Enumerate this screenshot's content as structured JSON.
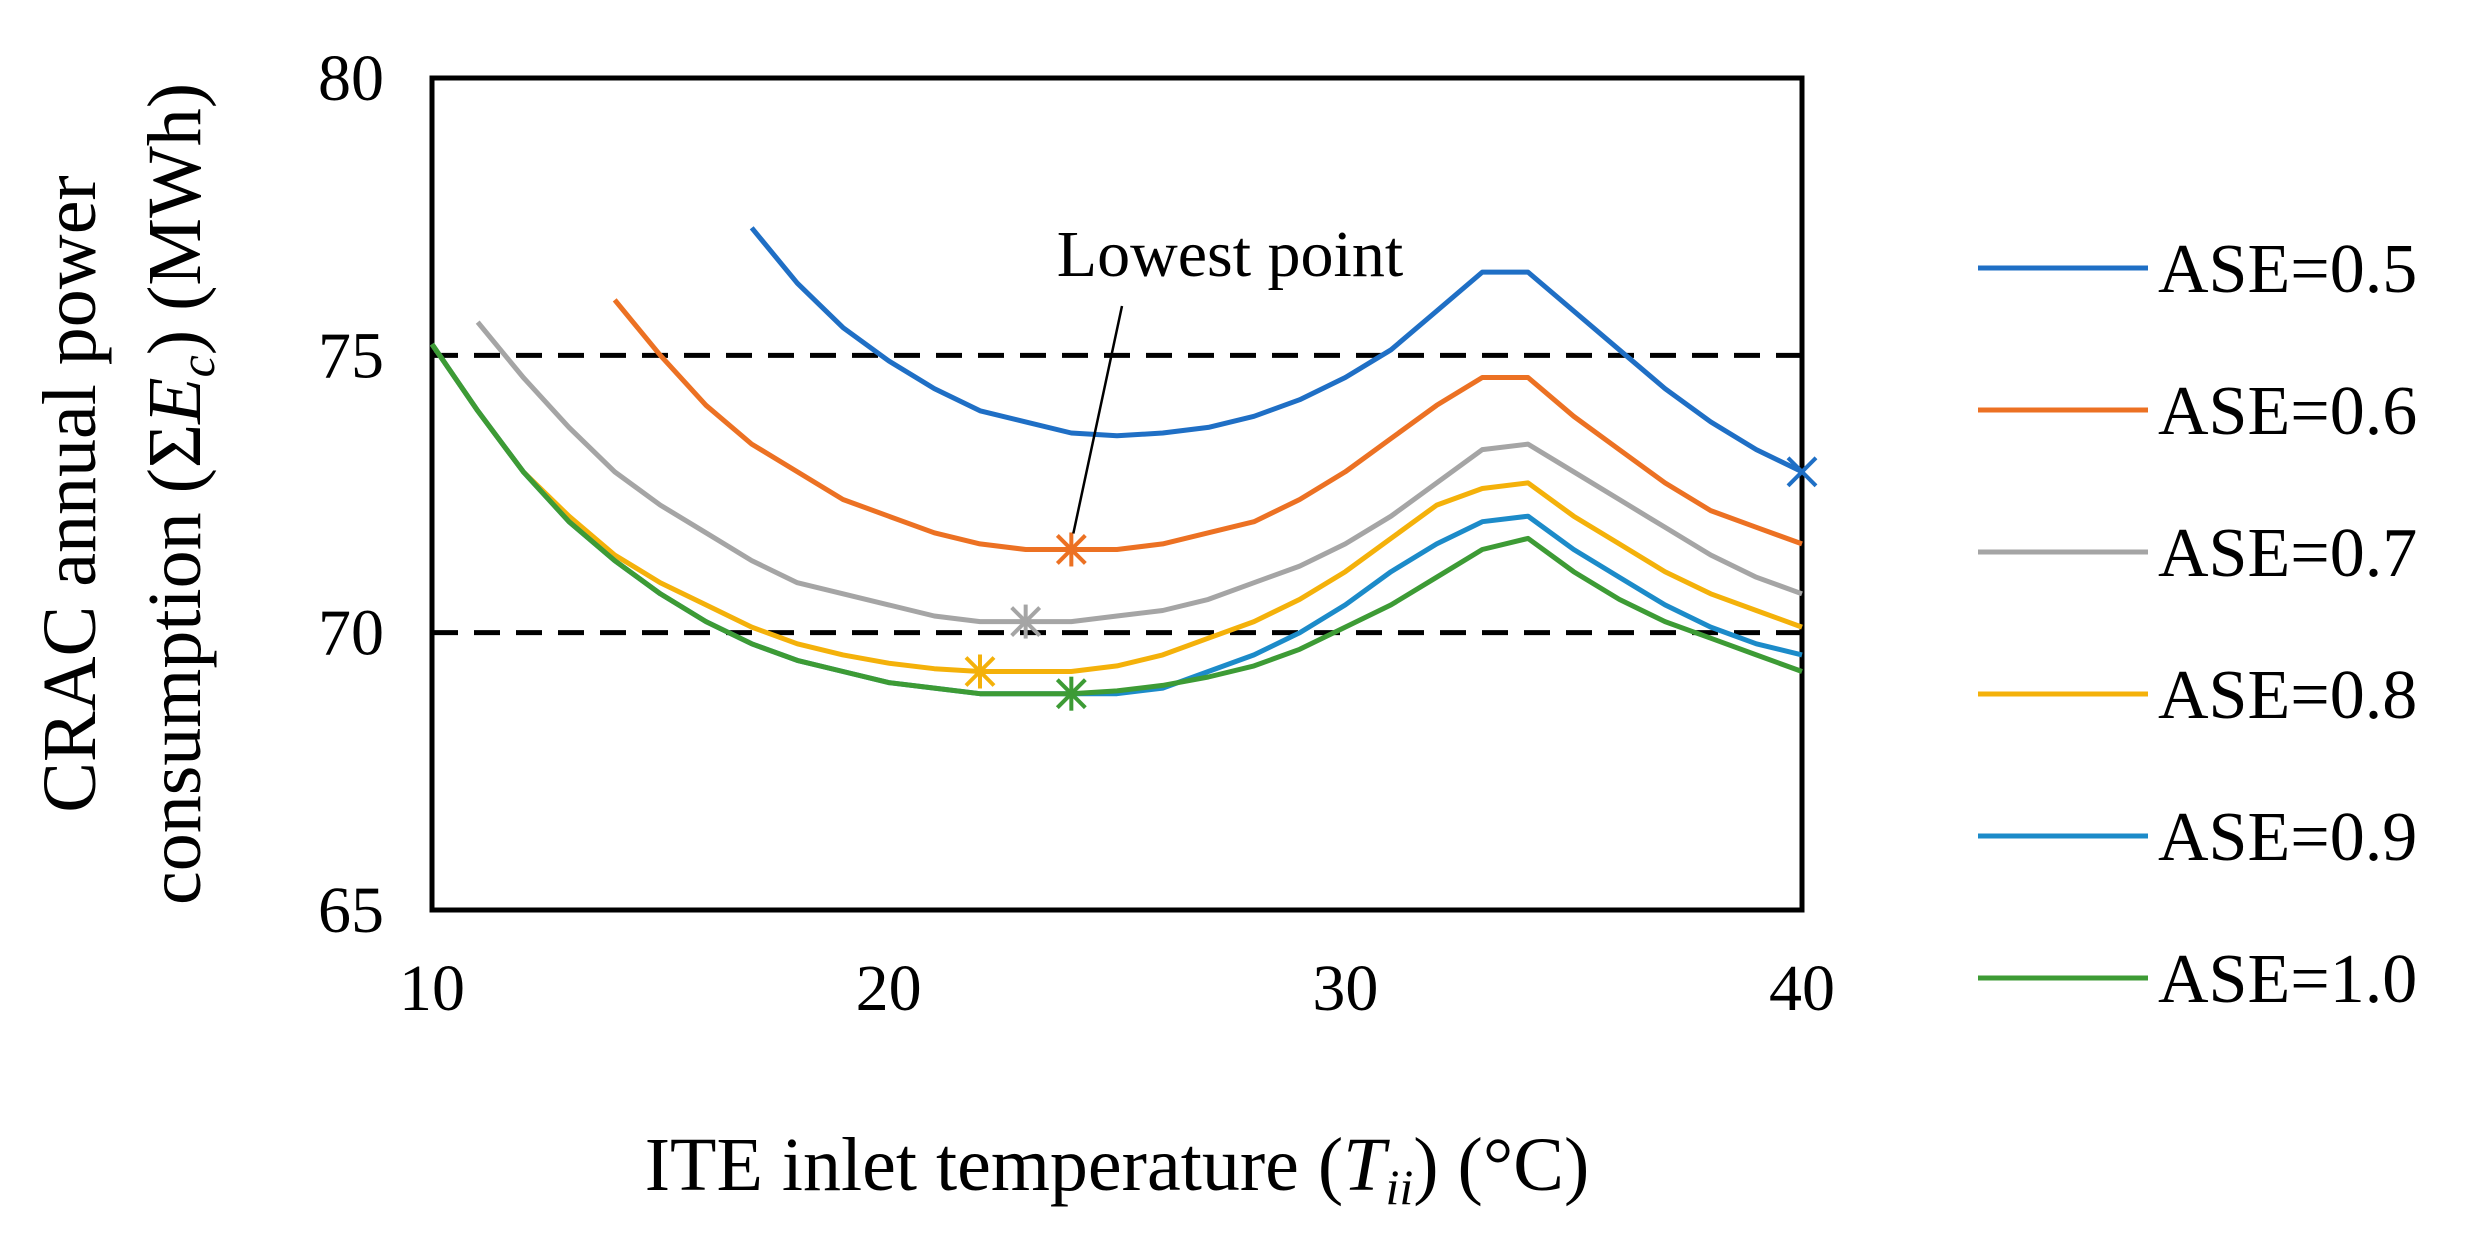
{
  "chart_data": {
    "type": "line",
    "xlabel": {
      "prefix": "ITE inlet temperature (",
      "var": "T",
      "sub": "ii",
      "suffix": ") (°C)"
    },
    "ylabel": {
      "line1": "CRAC annual power",
      "line2": {
        "prefix": "consumption (Σ",
        "var": "E",
        "sub": "c",
        "suffix": ") (MWh)"
      }
    },
    "xlim": [
      10,
      40
    ],
    "ylim": [
      65,
      80
    ],
    "xticks": [
      "10",
      "20",
      "30",
      "40"
    ],
    "yticks": [
      "65",
      "70",
      "75",
      "80"
    ],
    "reference_lines": [
      75,
      70
    ],
    "annotation": {
      "text": "Lowest point",
      "target": [
        24,
        71.5
      ]
    },
    "legend_position": "right",
    "series": [
      {
        "name": "ASE=0.5",
        "color": "#1f6fc5",
        "x": [
          17,
          18,
          19,
          20,
          21,
          22,
          23,
          24,
          25,
          26,
          27,
          28,
          29,
          30,
          31,
          32,
          33,
          34,
          35,
          36,
          37,
          38,
          39,
          40
        ],
        "y": [
          77.3,
          76.3,
          75.5,
          74.9,
          74.4,
          74.0,
          73.8,
          73.6,
          73.55,
          73.6,
          73.7,
          73.9,
          74.2,
          74.6,
          75.1,
          75.8,
          76.5,
          76.5,
          75.8,
          75.1,
          74.4,
          73.8,
          73.3,
          72.9
        ],
        "marker": {
          "x": 40,
          "y": 72.9,
          "symbol": "x"
        }
      },
      {
        "name": "ASE=0.6",
        "color": "#ec7123",
        "x": [
          14,
          15,
          16,
          17,
          18,
          19,
          20,
          21,
          22,
          23,
          24,
          25,
          26,
          27,
          28,
          29,
          30,
          31,
          32,
          33,
          34,
          35,
          36,
          37,
          38,
          39,
          40
        ],
        "y": [
          76.0,
          75.0,
          74.1,
          73.4,
          72.9,
          72.4,
          72.1,
          71.8,
          71.6,
          71.5,
          71.5,
          71.5,
          71.6,
          71.8,
          72.0,
          72.4,
          72.9,
          73.5,
          74.1,
          74.6,
          74.6,
          73.9,
          73.3,
          72.7,
          72.2,
          71.9,
          71.6
        ],
        "marker": {
          "x": 24,
          "y": 71.5,
          "symbol": "asterisk"
        }
      },
      {
        "name": "ASE=0.7",
        "color": "#a5a5a5",
        "x": [
          11,
          12,
          13,
          14,
          15,
          16,
          17,
          18,
          19,
          20,
          21,
          22,
          23,
          24,
          25,
          26,
          27,
          28,
          29,
          30,
          31,
          32,
          33,
          34,
          35,
          36,
          37,
          38,
          39,
          40
        ],
        "y": [
          75.6,
          74.6,
          73.7,
          72.9,
          72.3,
          71.8,
          71.3,
          70.9,
          70.7,
          70.5,
          70.3,
          70.2,
          70.2,
          70.2,
          70.3,
          70.4,
          70.6,
          70.9,
          71.2,
          71.6,
          72.1,
          72.7,
          73.3,
          73.4,
          72.9,
          72.4,
          71.9,
          71.4,
          71.0,
          70.7
        ],
        "marker": {
          "x": 23,
          "y": 70.2,
          "symbol": "asterisk"
        }
      },
      {
        "name": "ASE=0.8",
        "color": "#f4b10a",
        "x": [
          10,
          11,
          12,
          13,
          14,
          15,
          16,
          17,
          18,
          19,
          20,
          21,
          22,
          23,
          24,
          25,
          26,
          27,
          28,
          29,
          30,
          31,
          32,
          33,
          34,
          35,
          36,
          37,
          38,
          39,
          40
        ],
        "y": [
          75.2,
          74.0,
          72.9,
          72.1,
          71.4,
          70.9,
          70.5,
          70.1,
          69.8,
          69.6,
          69.45,
          69.35,
          69.3,
          69.3,
          69.3,
          69.4,
          69.6,
          69.9,
          70.2,
          70.6,
          71.1,
          71.7,
          72.3,
          72.6,
          72.7,
          72.1,
          71.6,
          71.1,
          70.7,
          70.4,
          70.1
        ],
        "marker": {
          "x": 22,
          "y": 69.3,
          "symbol": "asterisk"
        }
      },
      {
        "name": "ASE=0.9",
        "color": "#1c8bc9",
        "x": [
          10,
          11,
          12,
          13,
          14,
          15,
          16,
          17,
          18,
          19,
          20,
          21,
          22,
          23,
          24,
          25,
          26,
          27,
          28,
          29,
          30,
          31,
          32,
          33,
          34,
          35,
          36,
          37,
          38,
          39,
          40
        ],
        "y": [
          75.2,
          74.0,
          72.9,
          72.0,
          71.3,
          70.7,
          70.2,
          69.8,
          69.5,
          69.3,
          69.1,
          69.0,
          68.9,
          68.9,
          68.9,
          68.9,
          69.0,
          69.3,
          69.6,
          70.0,
          70.5,
          71.1,
          71.6,
          72.0,
          72.1,
          71.5,
          71.0,
          70.5,
          70.1,
          69.8,
          69.6
        ],
        "marker": null
      },
      {
        "name": "ASE=1.0",
        "color": "#3d9b35",
        "x": [
          10,
          11,
          12,
          13,
          14,
          15,
          16,
          17,
          18,
          19,
          20,
          21,
          22,
          23,
          24,
          25,
          26,
          27,
          28,
          29,
          30,
          31,
          32,
          33,
          34,
          35,
          36,
          37,
          38,
          39,
          40
        ],
        "y": [
          75.2,
          74.0,
          72.9,
          72.0,
          71.3,
          70.7,
          70.2,
          69.8,
          69.5,
          69.3,
          69.1,
          69.0,
          68.9,
          68.9,
          68.9,
          68.95,
          69.05,
          69.2,
          69.4,
          69.7,
          70.1,
          70.5,
          71.0,
          71.5,
          71.7,
          71.1,
          70.6,
          70.2,
          69.9,
          69.6,
          69.3
        ],
        "marker": {
          "x": 24,
          "y": 68.9,
          "symbol": "asterisk"
        }
      }
    ]
  }
}
